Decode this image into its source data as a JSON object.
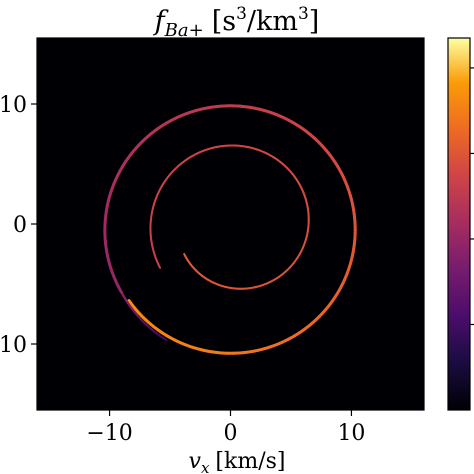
{
  "chart_data": {
    "type": "heatmap",
    "title": {
      "symbol": "f",
      "subscript": "Ba+",
      "units_pre": "[s",
      "units_exp1": "3",
      "units_mid": "/km",
      "units_exp2": "3",
      "units_post": "]"
    },
    "xlabel": {
      "symbol": "v",
      "subscript": "x",
      "units": "[km/s]"
    },
    "ylabel": "",
    "xlim": [
      -16,
      16
    ],
    "ylim": [
      -15.5,
      15.5
    ],
    "x_ticks": [
      -10,
      0,
      10
    ],
    "x_tick_labels": [
      "−10",
      "0",
      "10"
    ],
    "y_ticks": [
      10,
      0,
      -10
    ],
    "y_tick_labels": [
      "10",
      "0",
      "10"
    ],
    "background_color": "#000004",
    "colormap": "inferno",
    "colorbar_ticks_count": 4,
    "grid": false,
    "features": [
      {
        "name": "outer-ring",
        "center": [
          0,
          -0.5
        ],
        "radius": 10.4,
        "start_angle_deg": 210,
        "sweep_deg": -355,
        "end_radius": 10.25,
        "intensity_start": 0.45,
        "intensity_end": 0.85
      },
      {
        "name": "inner-spiral",
        "center": [
          0.5,
          0
        ],
        "radius": 7.3,
        "start_angle_deg": 210,
        "sweep_deg": -360,
        "end_radius": 5.0,
        "intensity_start": 0.6,
        "intensity_end": 0.7
      },
      {
        "name": "outer-tail",
        "center": [
          0,
          -0.5
        ],
        "radius": 10.4,
        "start_angle_deg": 210,
        "sweep_deg": 30,
        "end_radius": 10.6,
        "intensity_start": 0.45,
        "intensity_end": 0.2
      }
    ]
  }
}
